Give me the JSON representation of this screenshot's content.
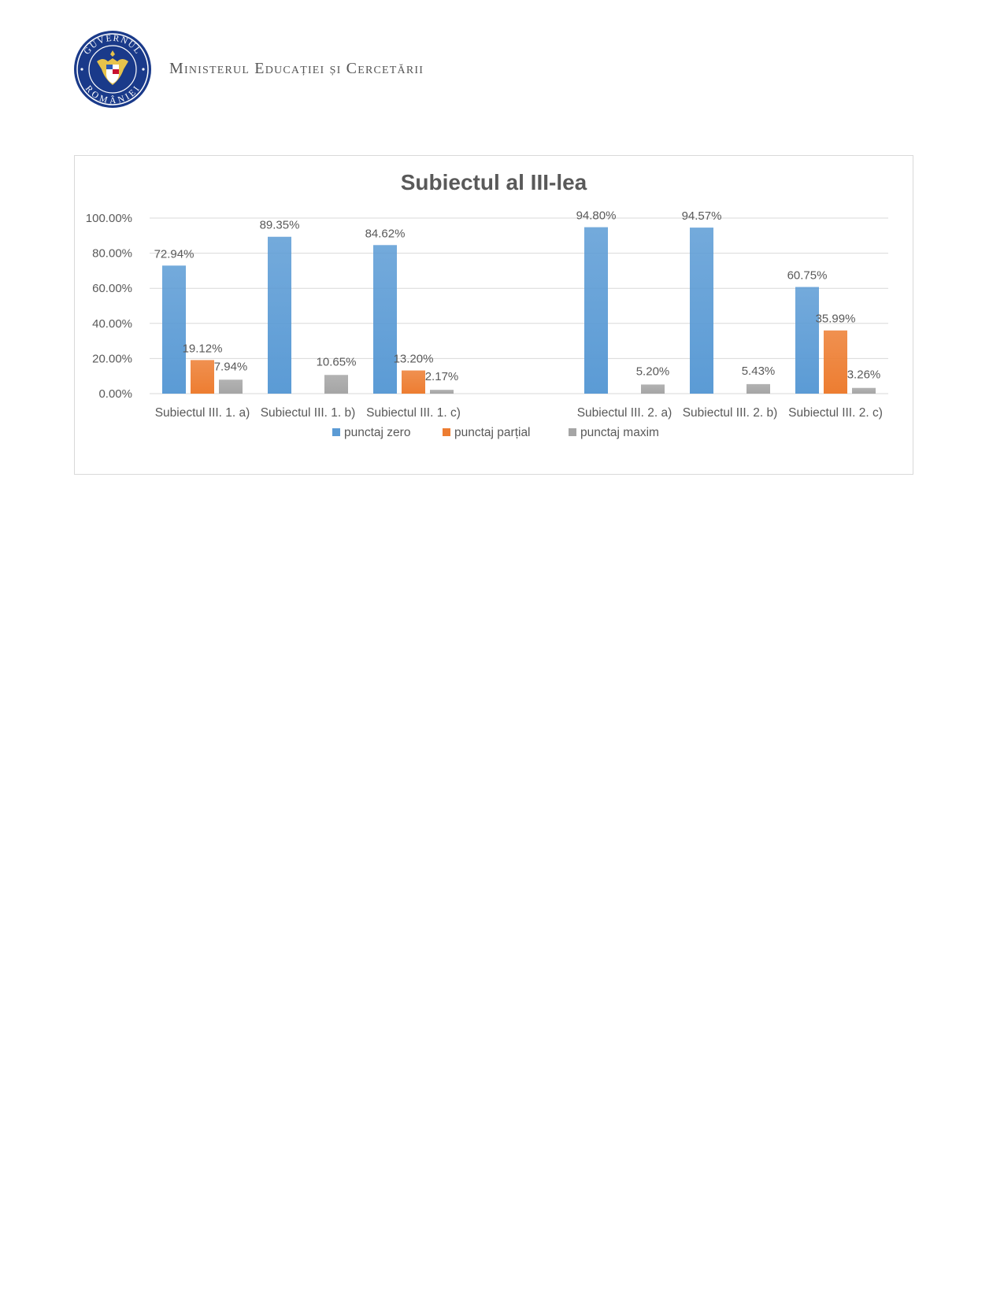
{
  "header": {
    "ministry": "Ministerul Educației și Cercetării",
    "seal_text_top": "GUVERNUL",
    "seal_text_bottom": "ROMÂNIEI",
    "seal_icon": "romanian-coat-of-arms-icon"
  },
  "colors": {
    "seal_blue": "#1a3a8a",
    "series": [
      "#5b9bd5",
      "#ed7d31",
      "#a5a5a5"
    ],
    "grid": "#d9d9d9",
    "text": "#595959"
  },
  "chart_data": {
    "type": "bar",
    "title": "Subiectul al III-lea",
    "categories": [
      "Subiectul III. 1. a)",
      "Subiectul III. 1. b)",
      "Subiectul III. 1. c)",
      "",
      "Subiectul III. 2. a)",
      "Subiectul III. 2. b)",
      "Subiectul III. 2. c)"
    ],
    "series": [
      {
        "name": "punctaj zero",
        "values": [
          72.94,
          89.35,
          84.62,
          null,
          94.8,
          94.57,
          60.75
        ],
        "labels": [
          "72.94%",
          "89.35%",
          "84.62%",
          "",
          "94.80%",
          "94.57%",
          "60.75%"
        ]
      },
      {
        "name": "punctaj parțial",
        "values": [
          19.12,
          0,
          13.2,
          null,
          0,
          0,
          35.99
        ],
        "labels": [
          "19.12%",
          "",
          "13.20%",
          "",
          "",
          "",
          "35.99%"
        ]
      },
      {
        "name": "punctaj maxim",
        "values": [
          7.94,
          10.65,
          2.17,
          null,
          5.2,
          5.43,
          3.26
        ],
        "labels": [
          "7.94%",
          "10.65%",
          "2.17%",
          "",
          "5.20%",
          "5.43%",
          "3.26%"
        ]
      }
    ],
    "ylim": [
      0,
      100
    ],
    "yticks": [
      "0.00%",
      "20.00%",
      "40.00%",
      "60.00%",
      "80.00%",
      "100.00%"
    ],
    "grid": true,
    "legend": "bottom"
  }
}
